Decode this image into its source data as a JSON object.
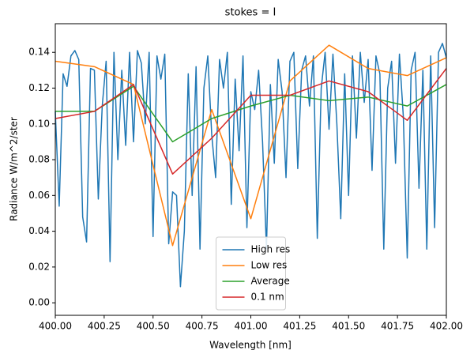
{
  "chart_data": {
    "type": "line",
    "title": "stokes = I",
    "x_label": "Wavelength [nm]",
    "y_label": "Radiance W/m^2/ster",
    "xlim": [
      400,
      402
    ],
    "ylim": [
      -0.007,
      0.156
    ],
    "xticks": [
      {
        "value": 400,
        "label": "400.00"
      },
      400.25,
      {
        "value": 400.5,
        "label": "400.50"
      },
      400.75,
      {
        "value": 401,
        "label": "401.00"
      },
      401.25,
      {
        "value": 401.5,
        "label": "401.50"
      },
      401.75,
      {
        "value": 402,
        "label": "402.00"
      }
    ],
    "yticks": [
      {
        "value": 0,
        "label": "0.00"
      },
      0.02,
      0.04,
      0.06,
      0.08,
      {
        "value": 0.1,
        "label": "0.10"
      },
      0.12,
      0.14
    ],
    "grid": false,
    "legend": "lower center",
    "series": [
      {
        "name": "High res",
        "color": "#1f77b4",
        "x": [
          400,
          400.02,
          400.04,
          400.06,
          400.08,
          400.1,
          400.12,
          400.14,
          400.16,
          400.18,
          400.2,
          400.22,
          400.24,
          400.26,
          400.28,
          400.3,
          400.32,
          400.34,
          400.36,
          400.38,
          400.4,
          400.42,
          400.44,
          400.46,
          400.48,
          400.5,
          400.52,
          400.54,
          400.56,
          400.58,
          400.6,
          400.62,
          400.64,
          400.66,
          400.68,
          400.7,
          400.72,
          400.74,
          400.76,
          400.78,
          400.8,
          400.82,
          400.84,
          400.86,
          400.88,
          400.9,
          400.92,
          400.94,
          400.96,
          400.98,
          401,
          401.02,
          401.04,
          401.06,
          401.08,
          401.1,
          401.12,
          401.14,
          401.16,
          401.18,
          401.2,
          401.22,
          401.24,
          401.26,
          401.28,
          401.3,
          401.32,
          401.34,
          401.36,
          401.38,
          401.4,
          401.42,
          401.44,
          401.46,
          401.48,
          401.5,
          401.52,
          401.54,
          401.56,
          401.58,
          401.6,
          401.62,
          401.64,
          401.66,
          401.68,
          401.7,
          401.72,
          401.74,
          401.76,
          401.78,
          401.8,
          401.82,
          401.84,
          401.86,
          401.88,
          401.9,
          401.92,
          401.94,
          401.96,
          401.98,
          402
        ],
        "values": [
          0.107,
          0.054,
          0.128,
          0.121,
          0.138,
          0.141,
          0.136,
          0.048,
          0.034,
          0.131,
          0.13,
          0.058,
          0.11,
          0.135,
          0.023,
          0.14,
          0.08,
          0.13,
          0.088,
          0.14,
          0.09,
          0.141,
          0.134,
          0.1,
          0.14,
          0.037,
          0.138,
          0.125,
          0.139,
          0.033,
          0.062,
          0.06,
          0.009,
          0.04,
          0.128,
          0.06,
          0.132,
          0.03,
          0.12,
          0.138,
          0.094,
          0.07,
          0.136,
          0.12,
          0.14,
          0.055,
          0.125,
          0.085,
          0.138,
          0.042,
          0.118,
          0.108,
          0.13,
          0.09,
          0.03,
          0.122,
          0.078,
          0.136,
          0.118,
          0.07,
          0.135,
          0.14,
          0.075,
          0.13,
          0.138,
          0.11,
          0.138,
          0.036,
          0.12,
          0.14,
          0.097,
          0.139,
          0.1,
          0.047,
          0.128,
          0.06,
          0.138,
          0.092,
          0.14,
          0.112,
          0.136,
          0.074,
          0.138,
          0.128,
          0.03,
          0.12,
          0.135,
          0.078,
          0.139,
          0.104,
          0.025,
          0.13,
          0.14,
          0.064,
          0.13,
          0.03,
          0.138,
          0.042,
          0.14,
          0.145,
          0.137
        ]
      },
      {
        "name": "Low res",
        "color": "#ff7f0e",
        "x": [
          400,
          400.2,
          400.4,
          400.6,
          400.8,
          401,
          401.2,
          401.4,
          401.6,
          401.8,
          402
        ],
        "values": [
          0.135,
          0.132,
          0.122,
          0.032,
          0.108,
          0.047,
          0.124,
          0.144,
          0.131,
          0.127,
          0.137
        ]
      },
      {
        "name": "Average",
        "color": "#2ca02c",
        "x": [
          400,
          400.2,
          400.4,
          400.6,
          400.8,
          401,
          401.2,
          401.4,
          401.6,
          401.8,
          402
        ],
        "values": [
          0.107,
          0.107,
          0.121,
          0.09,
          0.103,
          0.11,
          0.116,
          0.113,
          0.115,
          0.11,
          0.122
        ]
      },
      {
        "name": "0.1 nm",
        "color": "#d62728",
        "x": [
          400,
          400.2,
          400.4,
          400.6,
          400.8,
          401,
          401.2,
          401.4,
          401.6,
          401.8,
          402
        ],
        "values": [
          0.103,
          0.107,
          0.122,
          0.072,
          0.092,
          0.116,
          0.116,
          0.124,
          0.118,
          0.102,
          0.131
        ]
      }
    ]
  }
}
